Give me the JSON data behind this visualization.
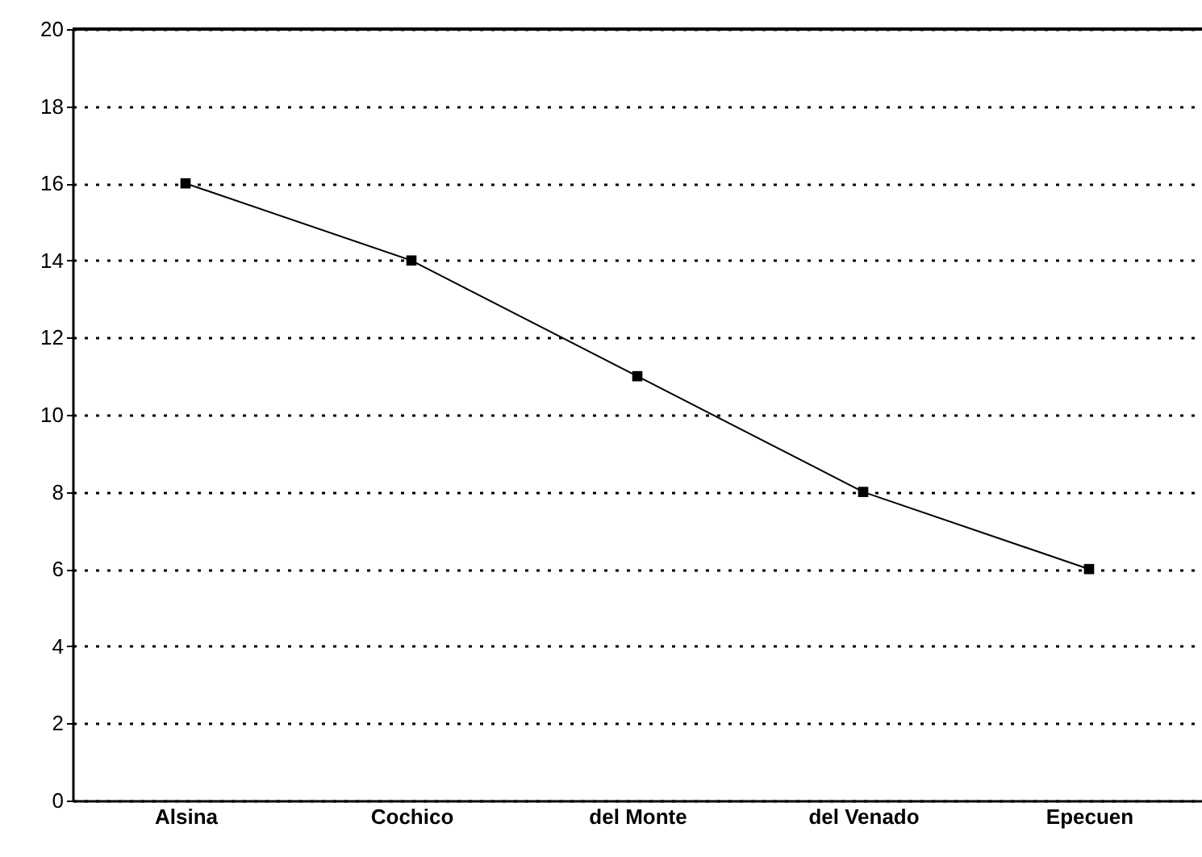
{
  "chart_data": {
    "type": "line",
    "categories": [
      "Alsina",
      "Cochico",
      "del Monte",
      "del Venado",
      "Epecuen"
    ],
    "series": [
      {
        "color": "#000000",
        "values": [
          16,
          14,
          11,
          8,
          6
        ]
      }
    ],
    "ylim": [
      0,
      20
    ],
    "yticks": [
      0,
      2,
      4,
      6,
      8,
      10,
      12,
      14,
      16,
      18,
      20
    ],
    "grid": "y",
    "marker": "square",
    "line_style": "solid"
  }
}
